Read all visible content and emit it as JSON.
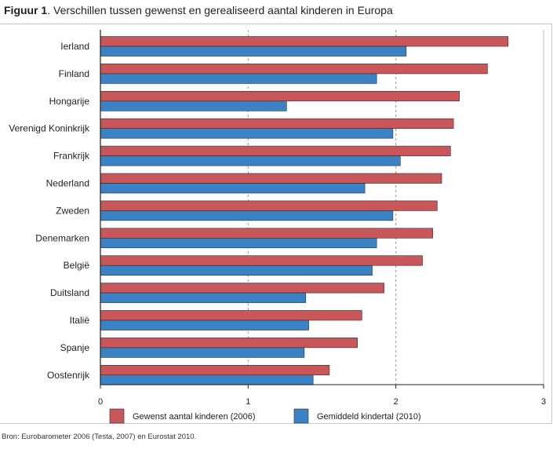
{
  "figure": {
    "label": "Figuur 1",
    "title": "Verschillen tussen gewenst en gerealiseerd aantal kinderen in Europa"
  },
  "source": "Bron: Eurobarometer 2006 (Testa, 2007) en Eurostat 2010.",
  "colors": {
    "gewenst": "#c9575a",
    "gemiddeld": "#3b82c4",
    "gridline": "#9a9a9a"
  },
  "chart_data": {
    "type": "bar",
    "orientation": "horizontal",
    "title": "Verschillen tussen gewenst en gerealiseerd aantal kinderen in Europa",
    "xlabel": "",
    "ylabel": "",
    "xlim": [
      0,
      3
    ],
    "xticks": [
      0,
      1,
      2,
      3
    ],
    "gridlines": [
      1,
      2
    ],
    "categories": [
      "Ierland",
      "Finland",
      "Hongarije",
      "Verenigd Koninkrijk",
      "Frankrijk",
      "Nederland",
      "Zweden",
      "Denemarken",
      "België",
      "Duitsland",
      "Italië",
      "Spanje",
      "Oostenrijk"
    ],
    "series": [
      {
        "name": "Gewenst aantal kinderen (2006)",
        "values": [
          2.76,
          2.62,
          2.43,
          2.39,
          2.37,
          2.31,
          2.28,
          2.25,
          2.18,
          1.92,
          1.77,
          1.74,
          1.55
        ]
      },
      {
        "name": "Gemiddeld kindertal (2010)",
        "values": [
          2.07,
          1.87,
          1.26,
          1.98,
          2.03,
          1.79,
          1.98,
          1.87,
          1.84,
          1.39,
          1.41,
          1.38,
          1.44
        ]
      }
    ],
    "legend_position": "bottom"
  }
}
